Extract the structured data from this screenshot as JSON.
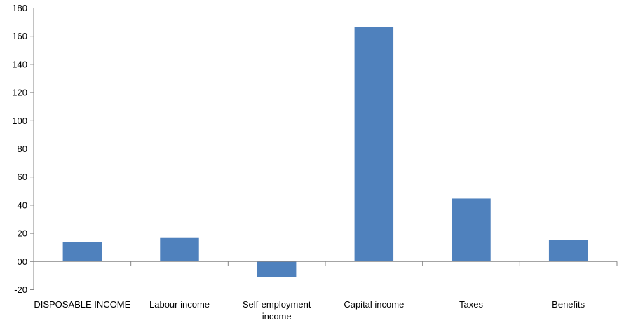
{
  "chart_data": {
    "type": "bar",
    "categories": [
      [
        "DISPOSABLE INCOME"
      ],
      [
        "Labour income"
      ],
      [
        "Self-employment",
        "income"
      ],
      [
        "Capital income"
      ],
      [
        "Taxes"
      ],
      [
        "Benefits"
      ]
    ],
    "values": [
      14,
      17.2,
      -11,
      166.5,
      44.7,
      15.2
    ],
    "ylim": [
      -20,
      180
    ],
    "yticks": [
      -20,
      0,
      20,
      40,
      60,
      80,
      100,
      120,
      140,
      160,
      180
    ],
    "ytick_labels": [
      "-20",
      "00",
      "20",
      "40",
      "60",
      "80",
      "100",
      "120",
      "140",
      "160",
      "180"
    ],
    "grid": false,
    "bar_color": "#4f81bd",
    "axis_color": "#868686"
  }
}
